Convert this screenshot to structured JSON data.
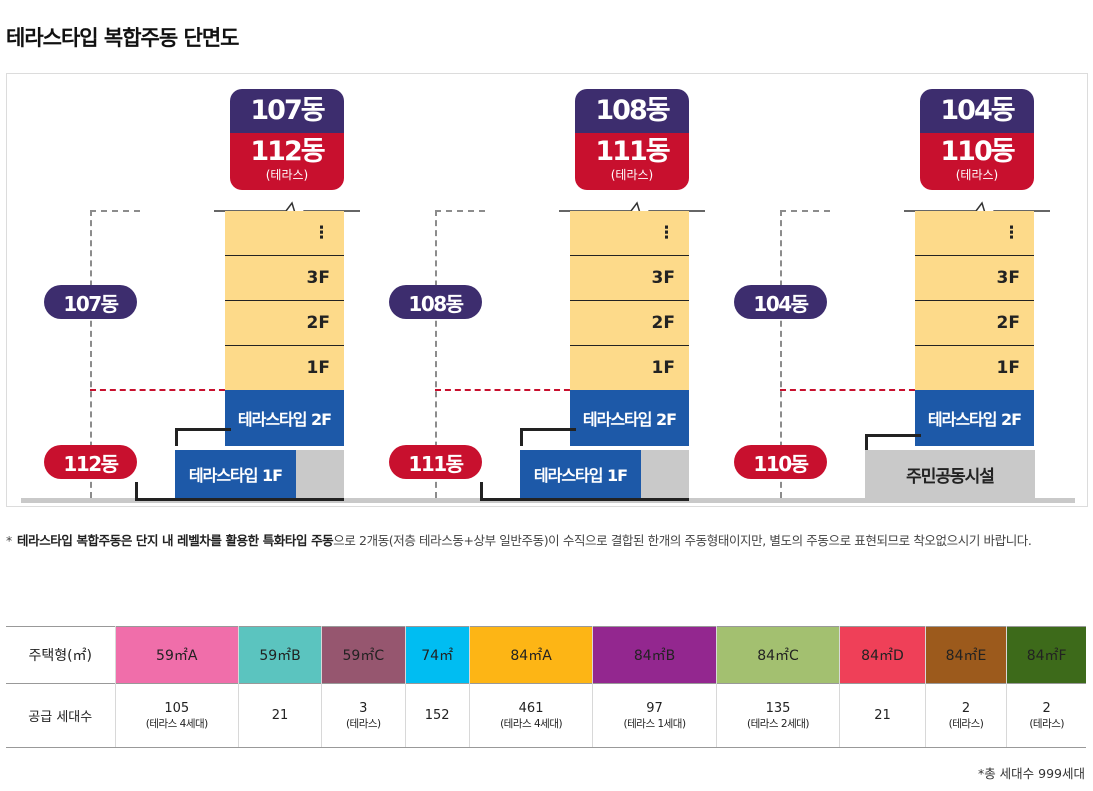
{
  "title": "테라스타입 복합주동 단면도",
  "buildings": [
    {
      "upper": "107동",
      "lower": "112동",
      "lower_sub": "(테라스)",
      "left_upper_label": "107동",
      "left_lower_label": "112동",
      "floors": [
        "⋮",
        "3F",
        "2F",
        "1F"
      ],
      "terrace2": "테라스타입 2F",
      "terrace1": "테라스타입 1F"
    },
    {
      "upper": "108동",
      "lower": "111동",
      "lower_sub": "(테라스)",
      "left_upper_label": "108동",
      "left_lower_label": "111동",
      "floors": [
        "⋮",
        "3F",
        "2F",
        "1F"
      ],
      "terrace2": "테라스타입 2F",
      "terrace1": "테라스타입 1F"
    },
    {
      "upper": "104동",
      "lower": "110동",
      "lower_sub": "(테라스)",
      "left_upper_label": "104동",
      "left_lower_label": "110동",
      "floors": [
        "⋮",
        "3F",
        "2F",
        "1F"
      ],
      "terrace2": "테라스타입 2F",
      "community": "주민공동시설"
    }
  ],
  "colors": {
    "purple": "#3d2d6e",
    "red": "#c8102e",
    "floor_yellow": "#fdda8a",
    "terrace_blue": "#1d59a8",
    "grey": "#c9c9c9"
  },
  "note": {
    "bold": "테라스타입 복합주동은 단지 내 레벨차를 활용한 특화타입 주동",
    "rest": "으로 2개동(저층 테라스동+상부 일반주동)이 수직으로 결합된 한개의 주동형태이지만, 별도의 주동으로 표현되므로 착오없으시기 바랍니다."
  },
  "table": {
    "type_header": "주택형(㎡)",
    "count_header": "공급 세대수",
    "columns": [
      {
        "type": "59㎡A",
        "color": "#f06eaa",
        "count": "105",
        "sub": "(테라스 4세대)"
      },
      {
        "type": "59㎡B",
        "color": "#5bc4bf",
        "count": "21",
        "sub": ""
      },
      {
        "type": "59㎡C",
        "color": "#96566f",
        "count": "3",
        "sub": "(테라스)"
      },
      {
        "type": "74㎡",
        "color": "#00bdf2",
        "count": "152",
        "sub": ""
      },
      {
        "type": "84㎡A",
        "color": "#fdb515",
        "count": "461",
        "sub": "(테라스 4세대)"
      },
      {
        "type": "84㎡B",
        "color": "#93278f",
        "count": "97",
        "sub": "(테라스 1세대)"
      },
      {
        "type": "84㎡C",
        "color": "#a3c070",
        "count": "135",
        "sub": "(테라스 2세대)"
      },
      {
        "type": "84㎡D",
        "color": "#ef4058",
        "count": "21",
        "sub": ""
      },
      {
        "type": "84㎡E",
        "color": "#9c5a1c",
        "count": "2",
        "sub": "(테라스)"
      },
      {
        "type": "84㎡F",
        "color": "#3d6a1a",
        "count": "2",
        "sub": "(테라스)"
      }
    ]
  },
  "total": "*총 세대수 999세대"
}
